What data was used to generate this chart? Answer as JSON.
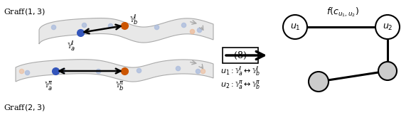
{
  "bg_color": "#ffffff",
  "graff13_label": "Graff$(1,3)$",
  "graff23_label": "Graff$(2,3)$",
  "blue_color": "#3355BB",
  "orange_color": "#CC5500",
  "light_blue": "#AABBDD",
  "light_orange": "#EEBB99",
  "gray_arrow": "#AAAAAA",
  "shape_fill": "#E8E8E8",
  "shape_edge": "#AAAAAA",
  "node_fill_white": "#FFFFFF",
  "node_fill_gray": "#DDDDDD",
  "u1_label": "$u_1$",
  "u2_label": "$u_2$",
  "fc_label": "$f(c_{u_1,u_2})$",
  "eq_label": "(8)",
  "ya_ell_label": "$\\mathbb{Y}_a^\\ell$",
  "yb_ell_label": "$\\mathbb{Y}_b^\\ell$",
  "ya_pi_label": "$\\mathbb{Y}_a^\\pi$",
  "yb_pi_label": "$\\mathbb{Y}_b^\\pi$",
  "u1_eq_label": "$u_1 : \\mathbb{Y}_a^\\ell \\leftrightarrow \\mathbb{Y}_b^\\ell$",
  "u2_eq_label": "$u_2 : \\mathbb{Y}_a^\\pi \\leftrightarrow \\mathbb{Y}_b^\\pi$"
}
